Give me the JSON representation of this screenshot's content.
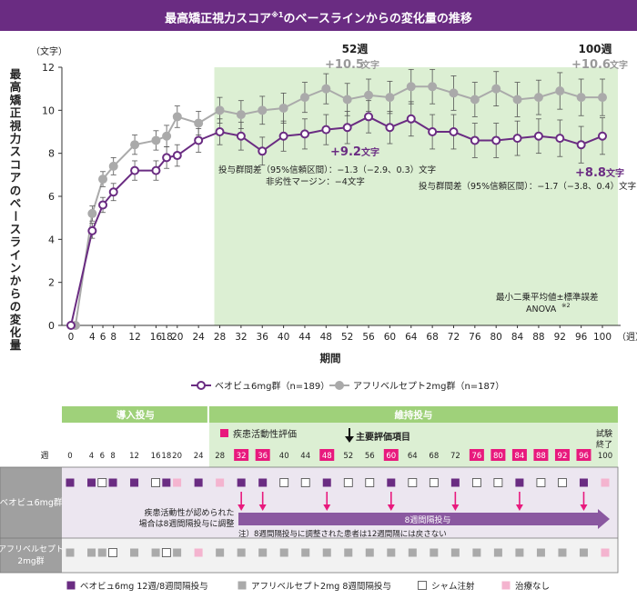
{
  "title": {
    "main": "最高矯正視力スコア",
    "sup": "※1",
    "rest": "のベースラインからの変化量の推移"
  },
  "chart_data": {
    "type": "line",
    "ylabel": "最高矯正視力スコアのベースラインからの変化量",
    "yunit": "（文字）",
    "xlabel": "期間",
    "xunit": "（週）",
    "ylim": [
      0,
      12
    ],
    "xlim": [
      0,
      100
    ],
    "yticks": [
      0,
      2,
      4,
      6,
      8,
      10,
      12
    ],
    "xticks": [
      0,
      4,
      6,
      8,
      12,
      16,
      18,
      20,
      24,
      28,
      32,
      36,
      40,
      44,
      48,
      52,
      56,
      60,
      64,
      68,
      72,
      76,
      80,
      84,
      88,
      92,
      96,
      100
    ],
    "x": [
      0,
      4,
      6,
      8,
      12,
      16,
      18,
      20,
      24,
      28,
      32,
      36,
      40,
      44,
      48,
      52,
      56,
      60,
      64,
      68,
      72,
      76,
      80,
      84,
      88,
      92,
      96,
      100
    ],
    "maintenance_start": 28,
    "series": [
      {
        "name": "ベオビュ6mg群（n=189）",
        "color": "#6a2c82",
        "values": [
          0,
          4.4,
          5.6,
          6.2,
          7.2,
          7.2,
          7.8,
          7.9,
          8.6,
          9.0,
          8.8,
          8.1,
          8.8,
          8.9,
          9.1,
          9.2,
          9.7,
          9.2,
          9.6,
          9.0,
          9.0,
          8.6,
          8.6,
          8.7,
          8.8,
          8.7,
          8.4,
          8.8
        ],
        "errors": [
          0,
          0.35,
          0.35,
          0.4,
          0.45,
          0.45,
          0.5,
          0.5,
          0.55,
          0.6,
          0.65,
          0.65,
          0.7,
          0.7,
          0.7,
          0.75,
          0.75,
          0.75,
          0.8,
          0.8,
          0.8,
          0.8,
          0.8,
          0.8,
          0.8,
          0.85,
          0.85,
          0.85
        ]
      },
      {
        "name": "アフリベルセプト2mg群（n=187）",
        "color": "#aaaaaa",
        "values": [
          0,
          5.2,
          6.8,
          7.4,
          8.4,
          8.6,
          8.8,
          9.7,
          9.4,
          10.0,
          9.8,
          10.0,
          10.1,
          10.6,
          11.0,
          10.5,
          10.7,
          10.6,
          11.1,
          11.1,
          10.8,
          10.5,
          11.0,
          10.5,
          10.6,
          10.9,
          10.6,
          10.6
        ],
        "errors": [
          0,
          0.35,
          0.35,
          0.4,
          0.45,
          0.45,
          0.5,
          0.5,
          0.55,
          0.6,
          0.65,
          0.65,
          0.7,
          0.7,
          0.7,
          0.75,
          0.75,
          0.75,
          0.8,
          0.8,
          0.8,
          0.8,
          0.8,
          0.8,
          0.8,
          0.85,
          0.85,
          0.85
        ]
      }
    ],
    "annotations": {
      "wk52_label": "52週",
      "wk52_aflibercept": "+10.5",
      "wk52_beovu": "+9.2",
      "wk100_label": "100週",
      "wk100_aflibercept": "+10.6",
      "wk100_beovu": "+8.8",
      "unit_char": "文字",
      "diff52_line1": "投与群間差（95%信頼区間）：−1.3（−2.9、0.3）文字",
      "diff52_line2": "非劣性マージン：−4文字",
      "diff100": "投与群間差（95%信頼区間）：−1.7（−3.8、0.4）文字",
      "stats_line1": "最小二乗平均値±標準誤差",
      "stats_line2": "ANOVA",
      "stats_sup": "※2"
    }
  },
  "schedule": {
    "induction_label": "導入投与",
    "maintenance_label": "維持投与",
    "disease_activity_label": "疾患活動性評価",
    "primary_endpoint_label": "主要評価項目",
    "study_end_line1": "試験",
    "study_end_line2": "終了",
    "week_label": "週",
    "weeks": [
      0,
      4,
      6,
      8,
      12,
      16,
      18,
      20,
      24,
      28,
      32,
      36,
      40,
      44,
      48,
      52,
      56,
      60,
      64,
      68,
      72,
      76,
      80,
      84,
      88,
      92,
      96,
      100
    ],
    "assessment_weeks": [
      32,
      36,
      48,
      60,
      76,
      80,
      84,
      88,
      92,
      96
    ],
    "beovu_row_label": "ベオビュ6mg群",
    "aflibercept_row_label_1": "アフリベルセプト",
    "aflibercept_row_label_2": "2mg群",
    "beovu_symbols": [
      "B",
      "B",
      "S",
      "B",
      "B",
      "S",
      "B",
      "N",
      "B",
      "N",
      "B",
      "B",
      "S",
      "S",
      "B",
      "S",
      "S",
      "B",
      "S",
      "S",
      "B",
      "S",
      "S",
      "B",
      "S",
      "S",
      "B",
      "N"
    ],
    "aflibercept_symbols": [
      "A",
      "A",
      "A",
      "S",
      "A",
      "A",
      "S",
      "A",
      "N",
      "A",
      "A",
      "A",
      "A",
      "A",
      "A",
      "A",
      "A",
      "A",
      "A",
      "A",
      "A",
      "A",
      "A",
      "A",
      "A",
      "A",
      "A",
      "N"
    ],
    "arrow_weeks": [
      32,
      36,
      48,
      60,
      72,
      84,
      96
    ],
    "adjust_note_1": "疾患活動性が認められた",
    "adjust_note_2": "場合は8週間隔投与に調整",
    "interval_label": "8週間隔投与",
    "footnote": "注）8週間隔投与に調整された患者は12週間隔には戻さない",
    "legend": {
      "beovu": "ベオビュ6mg 12週/8週間隔投与",
      "aflibercept": "アフリベルセプト2mg 8週間隔投与",
      "sham": "シャム注射",
      "none": "治療なし"
    }
  },
  "colors": {
    "purple": "#6a2c82",
    "gray": "#aaaaaa",
    "green_band": "#dcefd3",
    "green_header": "#9fd17a",
    "pink": "#e8197d",
    "light_pink": "#f4b4cf"
  }
}
